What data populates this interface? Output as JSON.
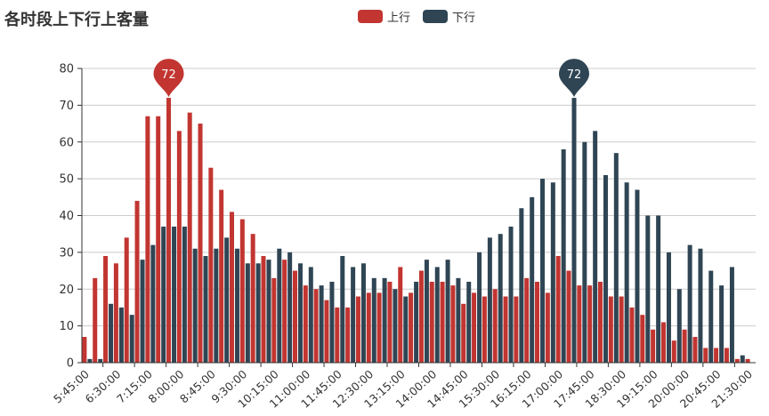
{
  "chart_data": {
    "type": "bar",
    "title": "各时段上下行上客量",
    "xlabel": "",
    "ylabel": "",
    "ylim": [
      0,
      80
    ],
    "yticks": [
      0,
      10,
      20,
      30,
      40,
      50,
      60,
      70,
      80
    ],
    "grid": true,
    "legend_position": "top-center",
    "categories": [
      "5:45:00",
      "6:00:00",
      "6:15:00",
      "6:30:00",
      "6:45:00",
      "7:00:00",
      "7:15:00",
      "7:30:00",
      "7:45:00",
      "8:00:00",
      "8:15:00",
      "8:30:00",
      "8:45:00",
      "9:00:00",
      "9:15:00",
      "9:30:00",
      "9:45:00",
      "10:00:00",
      "10:15:00",
      "10:30:00",
      "10:45:00",
      "11:00:00",
      "11:15:00",
      "11:30:00",
      "11:45:00",
      "12:00:00",
      "12:15:00",
      "12:30:00",
      "12:45:00",
      "13:00:00",
      "13:15:00",
      "13:30:00",
      "13:45:00",
      "14:00:00",
      "14:15:00",
      "14:30:00",
      "14:45:00",
      "15:00:00",
      "15:15:00",
      "15:30:00",
      "15:45:00",
      "16:00:00",
      "16:15:00",
      "16:30:00",
      "16:45:00",
      "17:00:00",
      "17:15:00",
      "17:30:00",
      "17:45:00",
      "18:00:00",
      "18:15:00",
      "18:30:00",
      "18:45:00",
      "19:00:00",
      "19:15:00",
      "19:30:00",
      "19:45:00",
      "20:00:00",
      "20:15:00",
      "20:30:00",
      "20:45:00",
      "21:00:00",
      "21:15:00",
      "21:30:00"
    ],
    "label_interval": 3,
    "series": [
      {
        "name": "上行",
        "color": "#c23531",
        "values": [
          7,
          23,
          29,
          27,
          34,
          44,
          67,
          67,
          72,
          63,
          68,
          65,
          53,
          47,
          41,
          39,
          35,
          29,
          23,
          28,
          25,
          21,
          20,
          17,
          15,
          15,
          18,
          19,
          19,
          22,
          26,
          19,
          25,
          22,
          22,
          21,
          16,
          19,
          18,
          20,
          18,
          18,
          23,
          22,
          19,
          29,
          25,
          21,
          21,
          22,
          18,
          18,
          15,
          13,
          9,
          11,
          6,
          9,
          7,
          4,
          4,
          4,
          1,
          1
        ],
        "max_marker": "72"
      },
      {
        "name": "下行",
        "color": "#2f4554",
        "values": [
          1,
          1,
          16,
          15,
          13,
          28,
          32,
          37,
          37,
          37,
          31,
          29,
          31,
          34,
          31,
          27,
          27,
          28,
          31,
          30,
          27,
          26,
          21,
          22,
          29,
          26,
          27,
          23,
          23,
          20,
          18,
          22,
          28,
          26,
          28,
          23,
          22,
          30,
          34,
          35,
          37,
          42,
          45,
          50,
          49,
          58,
          72,
          60,
          63,
          51,
          57,
          49,
          47,
          40,
          40,
          30,
          20,
          32,
          31,
          25,
          21,
          26,
          2,
          0
        ],
        "max_marker": "72"
      }
    ]
  }
}
